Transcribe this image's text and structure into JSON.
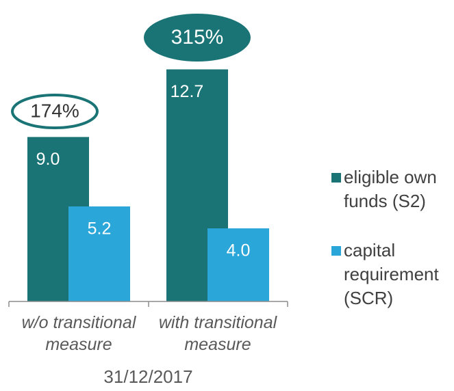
{
  "chart_data": {
    "type": "bar",
    "categories": [
      "w/o transitional measure",
      "with transitional measure"
    ],
    "series": [
      {
        "name": "eligible own funds (S2)",
        "color": "#1a7475",
        "values": [
          9.0,
          12.7
        ],
        "value_labels": [
          "9.0",
          "12.7"
        ]
      },
      {
        "name": "capital requirement (SCR)",
        "color": "#2aa6d8",
        "values": [
          5.2,
          4.0
        ],
        "value_labels": [
          "5.2",
          "4.0"
        ]
      }
    ],
    "ylim": [
      0,
      15
    ],
    "x_label": "31/12/2017",
    "annotations": [
      "174%",
      "315%"
    ],
    "legend": "right"
  }
}
